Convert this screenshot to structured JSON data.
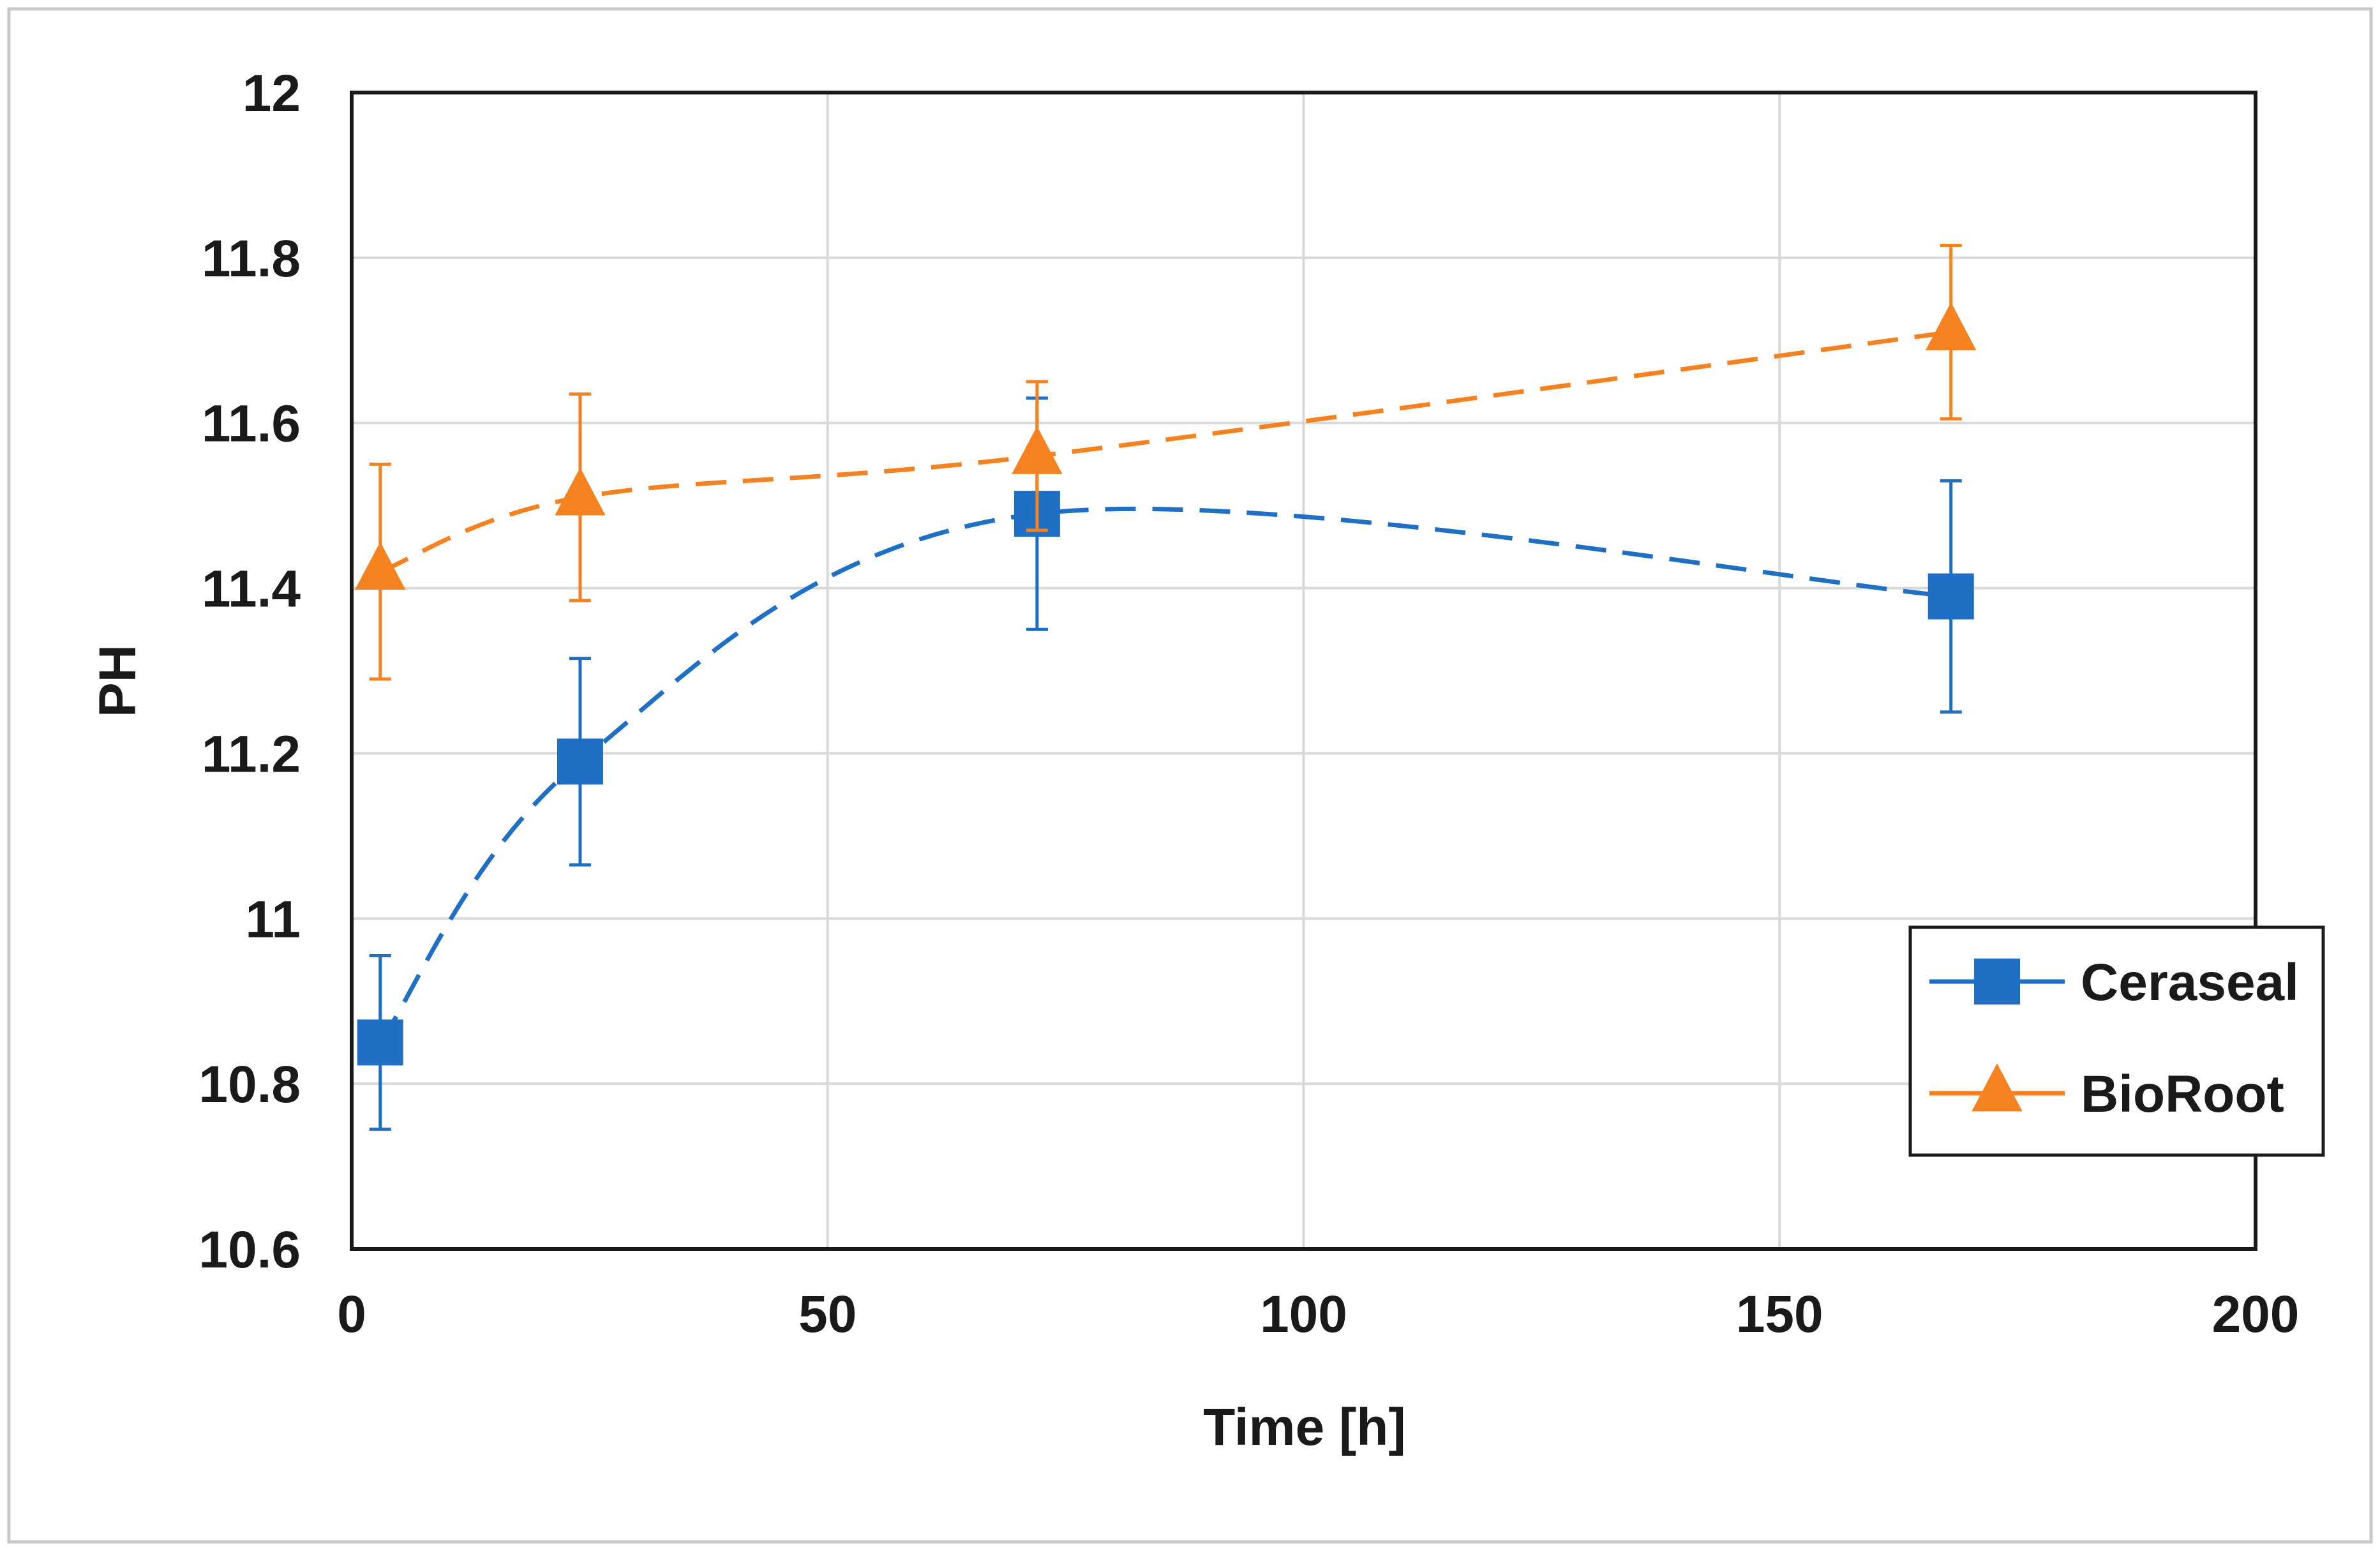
{
  "chart_data": {
    "type": "line",
    "title": "",
    "xlabel": "Time [h]",
    "ylabel": "PH",
    "xlim": [
      0,
      200
    ],
    "ylim": [
      10.6,
      12
    ],
    "x_ticks": [
      0,
      50,
      100,
      150,
      200
    ],
    "x_tick_labels": [
      "0",
      "50",
      "100",
      "150",
      "200"
    ],
    "y_ticks": [
      10.6,
      10.8,
      11,
      11.2,
      11.4,
      11.6,
      11.8,
      12
    ],
    "y_tick_labels": [
      "10.6",
      "10.8",
      "11",
      "11.2",
      "11.4",
      "11.6",
      "11.8",
      "12"
    ],
    "grid": true,
    "legend_position": "bottom-right",
    "smoothed_dashed_lines": true,
    "series": [
      {
        "name": "Ceraseal",
        "marker": "square",
        "color": "#1F6FC5",
        "x": [
          3,
          24,
          72,
          168
        ],
        "y": [
          10.85,
          11.19,
          11.49,
          11.39
        ],
        "error": [
          0.105,
          0.125,
          0.14,
          0.14
        ]
      },
      {
        "name": "BioRoot",
        "marker": "triangle",
        "color": "#F58220",
        "x": [
          3,
          24,
          72,
          168
        ],
        "y": [
          11.42,
          11.51,
          11.56,
          11.71
        ],
        "error": [
          0.13,
          0.125,
          0.09,
          0.105
        ]
      }
    ]
  }
}
